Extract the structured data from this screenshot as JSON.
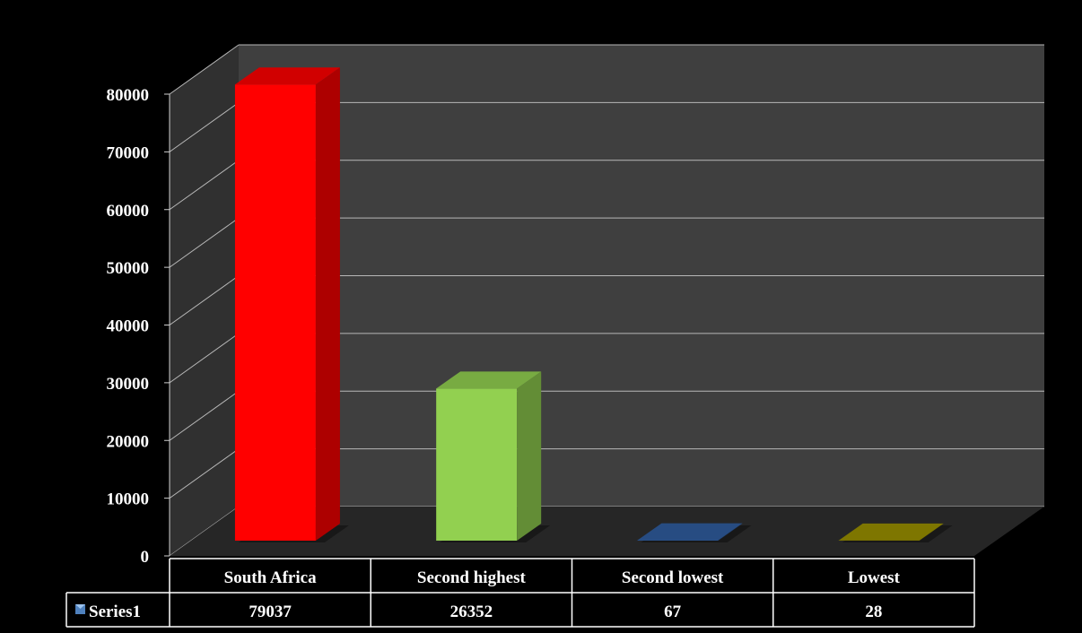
{
  "chart_data": {
    "type": "bar",
    "style": "3d-column-with-data-table",
    "categories": [
      "South Africa",
      "Second highest",
      "Second lowest",
      "Lowest"
    ],
    "series": [
      {
        "name": "Series1",
        "values": [
          79037,
          26352,
          67,
          28
        ],
        "value_labels": [
          "79037",
          "26352",
          "67",
          "28"
        ]
      }
    ],
    "bar_colors": [
      "#ff0000",
      "#92d050",
      "#2f5d9e",
      "#9a9000"
    ],
    "y_ticks": [
      "0",
      "10000",
      "20000",
      "30000",
      "40000",
      "50000",
      "60000",
      "70000",
      "80000"
    ],
    "ylim": [
      0,
      80000
    ],
    "grid": true,
    "legend": "data-table-left",
    "title": "",
    "xlabel": "",
    "ylabel": ""
  }
}
